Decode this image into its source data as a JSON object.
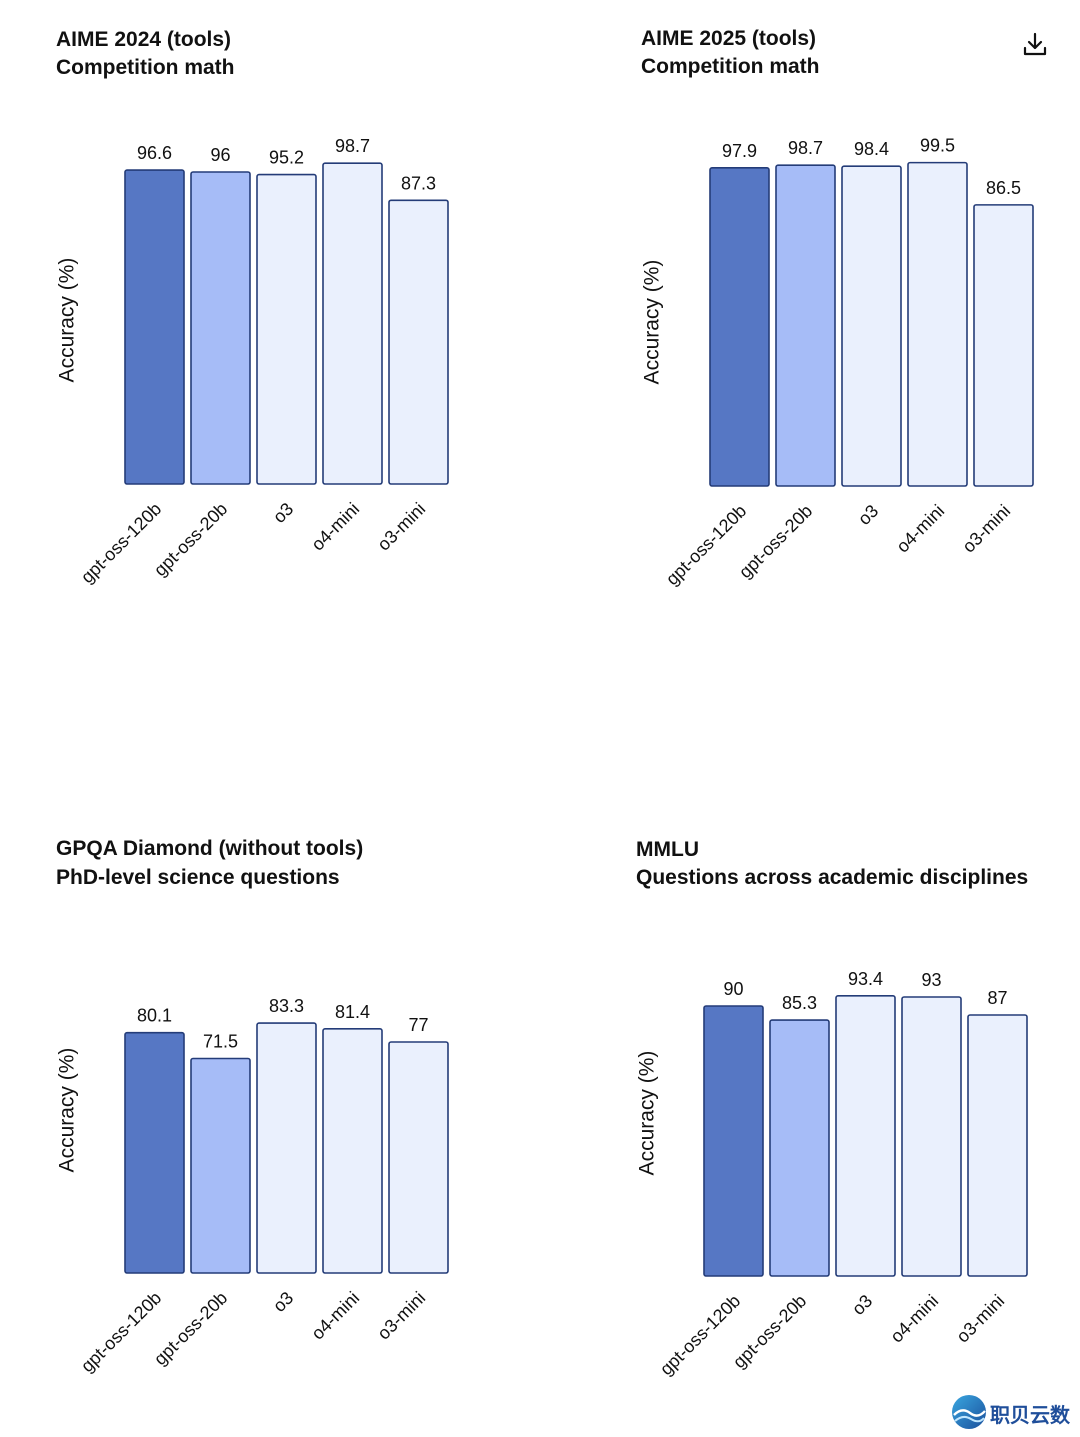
{
  "toolbar": {
    "download_icon": "download-icon"
  },
  "watermark": {
    "text": "职贝云数",
    "icon": "logo-icon"
  },
  "colors": {
    "gpt-oss-120b": "#5677c4",
    "gpt-oss-20b": "#a6bcf7",
    "others": "#eaf0fd",
    "stroke": "#243c78"
  },
  "chart_data": [
    {
      "type": "bar",
      "title": "AIME 2024 (tools)",
      "subtitle": "Competition math",
      "ylabel": "Accuracy (%)",
      "categories": [
        "gpt-oss-120b",
        "gpt-oss-20b",
        "o3",
        "o4-mini",
        "o3-mini"
      ],
      "values": [
        96.6,
        96,
        95.2,
        98.7,
        87.3
      ],
      "value_labels": [
        "96.6",
        "96",
        "95.2",
        "98.7",
        "87.3"
      ],
      "ylim": [
        0,
        100
      ],
      "grid": false
    },
    {
      "type": "bar",
      "title": "AIME 2025 (tools)",
      "subtitle": "Competition math",
      "ylabel": "Accuracy (%)",
      "categories": [
        "gpt-oss-120b",
        "gpt-oss-20b",
        "o3",
        "o4-mini",
        "o3-mini"
      ],
      "values": [
        97.9,
        98.7,
        98.4,
        99.5,
        86.5
      ],
      "value_labels": [
        "97.9",
        "98.7",
        "98.4",
        "99.5",
        "86.5"
      ],
      "ylim": [
        0,
        100
      ],
      "grid": false
    },
    {
      "type": "bar",
      "title": "GPQA Diamond (without tools)",
      "subtitle": "PhD-level science questions",
      "ylabel": "Accuracy (%)",
      "categories": [
        "gpt-oss-120b",
        "gpt-oss-20b",
        "o3",
        "o4-mini",
        "o3-mini"
      ],
      "values": [
        80.1,
        71.5,
        83.3,
        81.4,
        77
      ],
      "value_labels": [
        "80.1",
        "71.5",
        "83.3",
        "81.4",
        "77"
      ],
      "ylim": [
        0,
        100
      ],
      "grid": false
    },
    {
      "type": "bar",
      "title": "MMLU",
      "subtitle": "Questions across academic disciplines",
      "ylabel": "Accuracy (%)",
      "categories": [
        "gpt-oss-120b",
        "gpt-oss-20b",
        "o3",
        "o4-mini",
        "o3-mini"
      ],
      "values": [
        90,
        85.3,
        93.4,
        93,
        87
      ],
      "value_labels": [
        "90",
        "85.3",
        "93.4",
        "93",
        "87"
      ],
      "ylim": [
        0,
        100
      ],
      "grid": false
    }
  ]
}
